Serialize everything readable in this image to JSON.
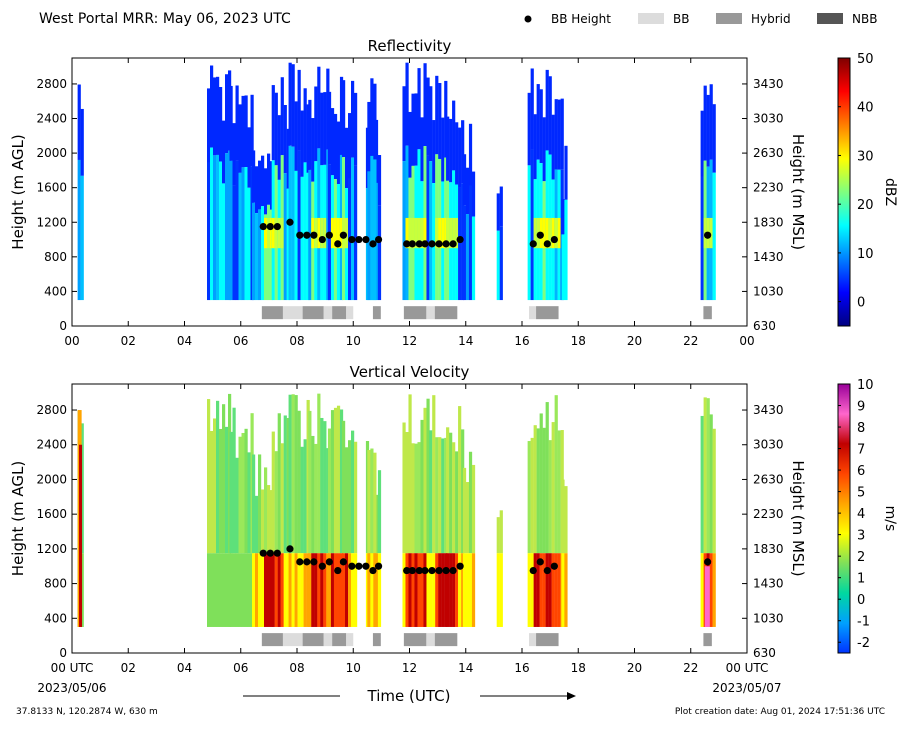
{
  "header": {
    "station_title": "West Portal MRR:  May 06, 2023 UTC",
    "legend": [
      {
        "label": "BB Height",
        "color": "#000000",
        "kind": "dot"
      },
      {
        "label": "BB",
        "color": "#dcdcdc",
        "kind": "box"
      },
      {
        "label": "Hybrid",
        "color": "#999999",
        "kind": "box"
      },
      {
        "label": "NBB",
        "color": "#555555",
        "kind": "box"
      }
    ]
  },
  "footer": {
    "xaxis_title": "Time (UTC)",
    "start_date": "2023/05/06",
    "end_date": "2023/05/07",
    "location": "37.8133 N, 120.2874 W, 630 m",
    "creation": "Plot creation date: Aug 01, 2024 17:51:36 UTC"
  },
  "chart_data": [
    {
      "type": "heatmap",
      "title": "Reflectivity",
      "ylabel": "Height (m AGL)",
      "y2label": "Height (m MSL)",
      "colorbar_label": "dBZ",
      "x_ticks": [
        "00",
        "02",
        "04",
        "06",
        "08",
        "10",
        "12",
        "14",
        "16",
        "18",
        "20",
        "22",
        "00"
      ],
      "y_ticks": [
        0,
        400,
        800,
        1200,
        1600,
        2000,
        2400,
        2800
      ],
      "y2_ticks": [
        630,
        1030,
        1430,
        1830,
        2230,
        2630,
        3030,
        3430
      ],
      "xlim": [
        0,
        24
      ],
      "ylim": [
        0,
        3100
      ],
      "cbar": {
        "min": -5,
        "max": 50,
        "ticks": [
          0,
          10,
          20,
          30,
          40,
          50
        ],
        "colors": [
          "#00007f",
          "#0000ff",
          "#007fff",
          "#00ffff",
          "#7fff7f",
          "#ffff00",
          "#ff7f00",
          "#ff0000",
          "#7f0000"
        ]
      },
      "bb_height": [
        [
          6.8,
          1150
        ],
        [
          7.05,
          1150
        ],
        [
          7.3,
          1150
        ],
        [
          7.75,
          1200
        ],
        [
          8.1,
          1050
        ],
        [
          8.35,
          1050
        ],
        [
          8.6,
          1050
        ],
        [
          8.9,
          1000
        ],
        [
          9.15,
          1050
        ],
        [
          9.45,
          950
        ],
        [
          9.65,
          1050
        ],
        [
          9.95,
          1000
        ],
        [
          10.2,
          1000
        ],
        [
          10.45,
          1000
        ],
        [
          10.7,
          950
        ],
        [
          10.9,
          1000
        ],
        [
          11.9,
          950
        ],
        [
          12.1,
          950
        ],
        [
          12.35,
          950
        ],
        [
          12.55,
          950
        ],
        [
          12.8,
          950
        ],
        [
          13.05,
          950
        ],
        [
          13.3,
          950
        ],
        [
          13.55,
          950
        ],
        [
          13.8,
          1000
        ],
        [
          16.4,
          950
        ],
        [
          16.65,
          1050
        ],
        [
          16.9,
          950
        ],
        [
          17.15,
          1000
        ],
        [
          22.6,
          1050
        ]
      ],
      "bb_type": [
        {
          "start": 6.75,
          "end": 7.5,
          "type": "Hybrid"
        },
        {
          "start": 7.5,
          "end": 8.2,
          "type": "BB"
        },
        {
          "start": 8.2,
          "end": 8.95,
          "type": "Hybrid"
        },
        {
          "start": 8.95,
          "end": 9.25,
          "type": "BB"
        },
        {
          "start": 9.25,
          "end": 9.75,
          "type": "Hybrid"
        },
        {
          "start": 9.75,
          "end": 10.0,
          "type": "BB"
        },
        {
          "start": 10.7,
          "end": 10.98,
          "type": "Hybrid"
        },
        {
          "start": 11.8,
          "end": 12.6,
          "type": "Hybrid"
        },
        {
          "start": 12.6,
          "end": 12.9,
          "type": "BB"
        },
        {
          "start": 12.9,
          "end": 13.7,
          "type": "Hybrid"
        },
        {
          "start": 16.25,
          "end": 16.5,
          "type": "BB"
        },
        {
          "start": 16.5,
          "end": 17.3,
          "type": "Hybrid"
        },
        {
          "start": 22.45,
          "end": 22.75,
          "type": "Hybrid"
        }
      ]
    },
    {
      "type": "heatmap",
      "title": "Vertical Velocity",
      "ylabel": "Height (m AGL)",
      "y2label": "Height (m MSL)",
      "colorbar_label": "m/s",
      "x_ticks": [
        "00 UTC",
        "02",
        "04",
        "06",
        "08",
        "10",
        "12",
        "14",
        "16",
        "18",
        "20",
        "22",
        "00 UTC"
      ],
      "y_ticks": [
        0,
        400,
        800,
        1200,
        1600,
        2000,
        2400,
        2800
      ],
      "y2_ticks": [
        630,
        1030,
        1430,
        1830,
        2230,
        2630,
        3030,
        3430
      ],
      "xlim": [
        0,
        24
      ],
      "ylim": [
        0,
        3100
      ],
      "cbar": {
        "min": -2.5,
        "max": 10,
        "ticks": [
          -2,
          -1,
          0,
          1,
          2,
          3,
          4,
          5,
          6,
          7,
          8,
          9,
          10
        ],
        "colors": [
          "#0033ff",
          "#00a0ff",
          "#00d8a0",
          "#7fe05a",
          "#ffff00",
          "#ffa500",
          "#ff4500",
          "#c00000",
          "#ff66cc",
          "#990099"
        ]
      },
      "bb_height": [
        [
          6.8,
          1150
        ],
        [
          7.05,
          1150
        ],
        [
          7.3,
          1150
        ],
        [
          7.75,
          1200
        ],
        [
          8.1,
          1050
        ],
        [
          8.35,
          1050
        ],
        [
          8.6,
          1050
        ],
        [
          8.9,
          1000
        ],
        [
          9.15,
          1050
        ],
        [
          9.45,
          950
        ],
        [
          9.65,
          1050
        ],
        [
          9.95,
          1000
        ],
        [
          10.2,
          1000
        ],
        [
          10.45,
          1000
        ],
        [
          10.7,
          950
        ],
        [
          10.9,
          1000
        ],
        [
          11.9,
          950
        ],
        [
          12.1,
          950
        ],
        [
          12.35,
          950
        ],
        [
          12.55,
          950
        ],
        [
          12.8,
          950
        ],
        [
          13.05,
          950
        ],
        [
          13.3,
          950
        ],
        [
          13.55,
          950
        ],
        [
          13.8,
          1000
        ],
        [
          16.4,
          950
        ],
        [
          16.65,
          1050
        ],
        [
          16.9,
          950
        ],
        [
          17.15,
          1000
        ],
        [
          22.6,
          1050
        ]
      ],
      "bb_type": [
        {
          "start": 6.75,
          "end": 7.5,
          "type": "Hybrid"
        },
        {
          "start": 7.5,
          "end": 8.2,
          "type": "BB"
        },
        {
          "start": 8.2,
          "end": 8.95,
          "type": "Hybrid"
        },
        {
          "start": 8.95,
          "end": 9.25,
          "type": "BB"
        },
        {
          "start": 9.25,
          "end": 9.75,
          "type": "Hybrid"
        },
        {
          "start": 9.75,
          "end": 10.0,
          "type": "BB"
        },
        {
          "start": 10.7,
          "end": 10.98,
          "type": "Hybrid"
        },
        {
          "start": 11.8,
          "end": 12.6,
          "type": "Hybrid"
        },
        {
          "start": 12.6,
          "end": 12.9,
          "type": "BB"
        },
        {
          "start": 12.9,
          "end": 13.7,
          "type": "Hybrid"
        },
        {
          "start": 16.25,
          "end": 16.5,
          "type": "BB"
        },
        {
          "start": 16.5,
          "end": 17.3,
          "type": "Hybrid"
        },
        {
          "start": 22.45,
          "end": 22.75,
          "type": "Hybrid"
        }
      ]
    }
  ]
}
